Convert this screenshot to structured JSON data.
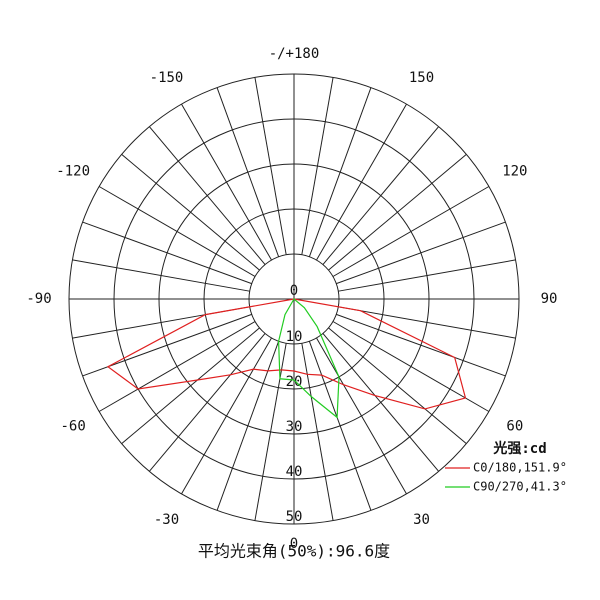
{
  "chart_data": {
    "type": "polar",
    "rlim": [
      0,
      50
    ],
    "rticks": [
      0,
      10,
      20,
      30,
      40,
      50
    ],
    "angle_ticks": [
      {
        "value": 180,
        "label": "-/+180"
      },
      -150,
      -120,
      -90,
      -60,
      -30,
      0,
      30,
      60,
      90,
      120,
      150
    ],
    "x": [
      -90,
      -80,
      -70,
      -60,
      -50,
      -40,
      -30,
      -20,
      -10,
      0,
      10,
      20,
      30,
      40,
      50,
      60,
      70,
      80,
      90
    ],
    "legend_title": "光强:cd",
    "series": [
      {
        "name": "C0/180,151.9°",
        "color": "#e02020",
        "values": [
          0,
          20,
          44,
          40,
          28,
          22,
          18,
          17,
          16,
          16,
          17,
          18,
          22,
          28,
          38,
          44,
          38,
          15,
          0
        ]
      },
      {
        "name": "C90/270,41.3°",
        "color": "#22cc22",
        "values": [
          0,
          0,
          0,
          0,
          0,
          0,
          4,
          10,
          18,
          18,
          22,
          28,
          20,
          8,
          3,
          0,
          0,
          0,
          0
        ]
      }
    ],
    "footer": "平均光束角(50%):96.6度"
  }
}
